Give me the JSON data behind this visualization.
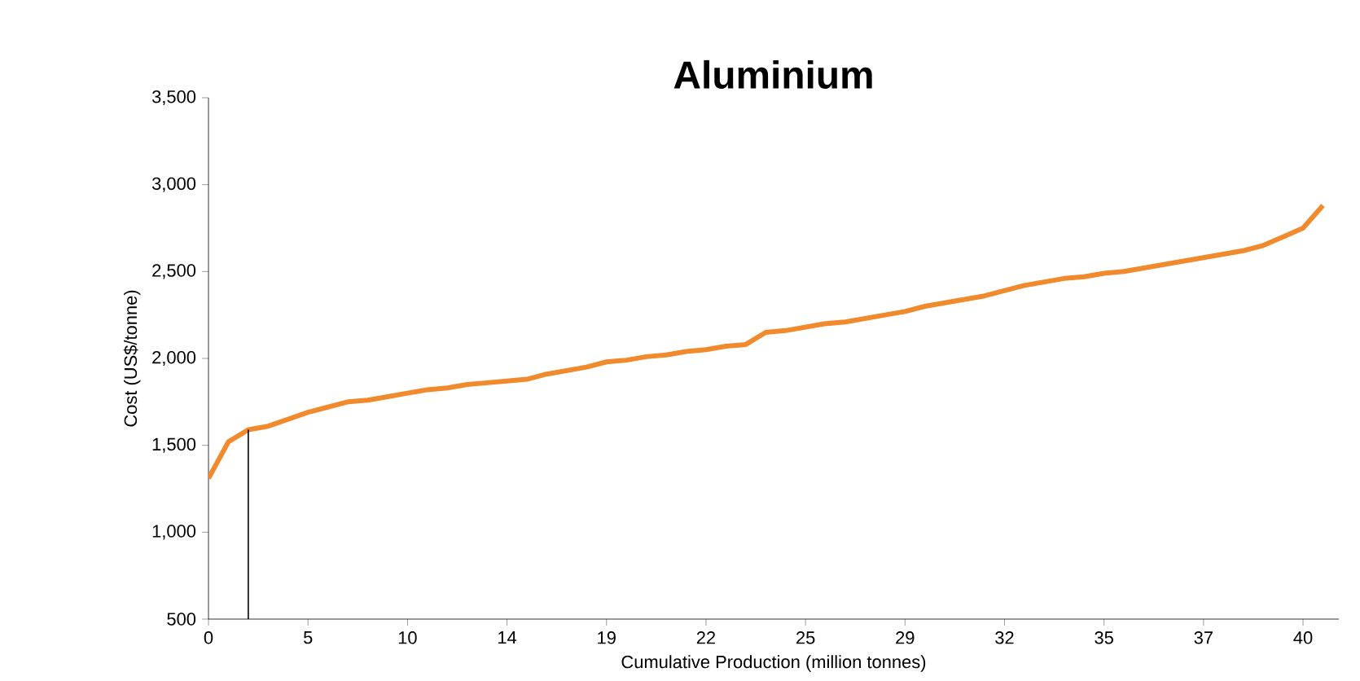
{
  "chart_data": {
    "type": "line",
    "title": "Aluminium",
    "xlabel": "Cumulative Production (million tonnes)",
    "ylabel": "Cost (US$/tonne)",
    "categories": [
      "0",
      null,
      null,
      null,
      null,
      "5",
      null,
      null,
      null,
      null,
      "10",
      null,
      null,
      null,
      null,
      "14",
      null,
      null,
      null,
      null,
      "19",
      null,
      null,
      null,
      null,
      "22",
      null,
      null,
      null,
      null,
      "25",
      null,
      null,
      null,
      null,
      "29",
      null,
      null,
      null,
      null,
      "32",
      null,
      null,
      null,
      null,
      "35",
      null,
      null,
      null,
      null,
      "37",
      null,
      null,
      null,
      null,
      "40",
      null
    ],
    "ylim": [
      500,
      3500
    ],
    "yticks": [
      {
        "value": 500,
        "label": "500"
      },
      {
        "value": 1000,
        "label": "1,000"
      },
      {
        "value": 1500,
        "label": "1,500"
      },
      {
        "value": 2000,
        "label": "2,000"
      },
      {
        "value": 2500,
        "label": "2,500"
      },
      {
        "value": 3000,
        "label": "3,000"
      },
      {
        "value": 3500,
        "label": "3,500"
      }
    ],
    "grid": false,
    "marker": "none",
    "line_style": "solid",
    "series": [
      {
        "color": "#f08a2c",
        "values": [
          1310,
          1520,
          1590,
          1610,
          1650,
          1690,
          1720,
          1750,
          1760,
          1780,
          1800,
          1820,
          1830,
          1850,
          1860,
          1870,
          1880,
          1910,
          1930,
          1950,
          1980,
          1990,
          2010,
          2020,
          2040,
          2050,
          2070,
          2080,
          2150,
          2160,
          2180,
          2200,
          2210,
          2230,
          2250,
          2270,
          2300,
          2320,
          2340,
          2360,
          2390,
          2420,
          2440,
          2460,
          2470,
          2490,
          2500,
          2520,
          2540,
          2560,
          2580,
          2600,
          2620,
          2650,
          2700,
          2750,
          2880
        ]
      },
      {
        "type": "bar",
        "color": "#000000",
        "values": [
          null,
          null,
          1590,
          null,
          null,
          null,
          null,
          null,
          null,
          null,
          null,
          null,
          null,
          null,
          null,
          null,
          null,
          null,
          null,
          null,
          null,
          null,
          null,
          null,
          null,
          null,
          null,
          null,
          null,
          null,
          null,
          null,
          null,
          null,
          null,
          null,
          null,
          null,
          null,
          null,
          null,
          null,
          null,
          null,
          null,
          null,
          null,
          null,
          null,
          null,
          null,
          null,
          null,
          null,
          null,
          null,
          null
        ]
      }
    ]
  }
}
